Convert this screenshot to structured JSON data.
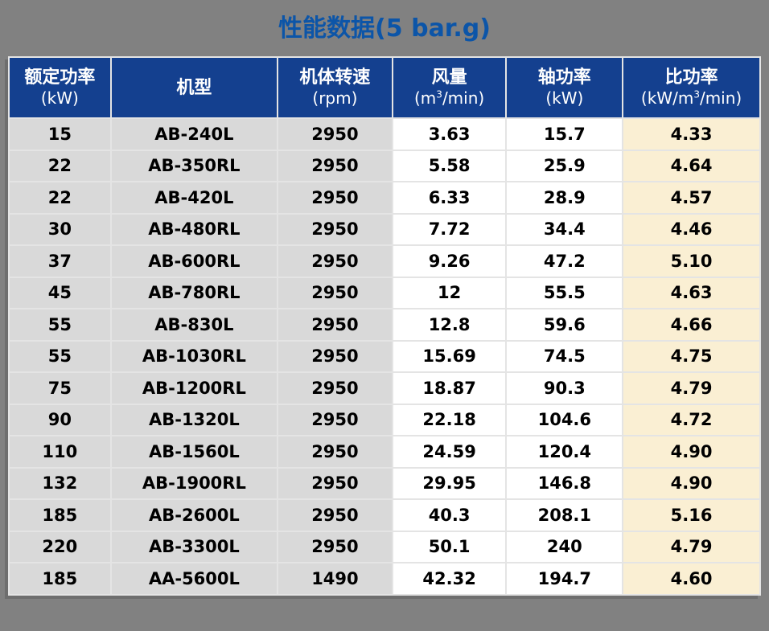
{
  "title": {
    "text": "性能数据(5 bar.g)"
  },
  "colors": {
    "page_bg": "#818181",
    "title": "#0c55a8",
    "header_bg": "#14408f",
    "header_text": "#ffffff",
    "cell_gray": "#d9d9d9",
    "cell_white": "#ffffff",
    "cell_cream": "#faefd3",
    "border": "#e4e4e4"
  },
  "table": {
    "columns": [
      {
        "name": "额定功率",
        "unit_pre": "(kW)",
        "unit_sup": "",
        "unit_post": "",
        "bg": "gray"
      },
      {
        "name": "机型",
        "unit_pre": "",
        "unit_sup": "",
        "unit_post": "",
        "bg": "gray"
      },
      {
        "name": "机体转速",
        "unit_pre": "(rpm)",
        "unit_sup": "",
        "unit_post": "",
        "bg": "gray"
      },
      {
        "name": "风量",
        "unit_pre": "(m",
        "unit_sup": "3",
        "unit_post": "/min)",
        "bg": "white"
      },
      {
        "name": "轴功率",
        "unit_pre": "(kW)",
        "unit_sup": "",
        "unit_post": "",
        "bg": "white"
      },
      {
        "name": "比功率",
        "unit_pre": "(kW/m",
        "unit_sup": "3",
        "unit_post": "/min)",
        "bg": "cream"
      }
    ],
    "rows": [
      [
        "15",
        "AB-240L",
        "2950",
        "3.63",
        "15.7",
        "4.33"
      ],
      [
        "22",
        "AB-350RL",
        "2950",
        "5.58",
        "25.9",
        "4.64"
      ],
      [
        "22",
        "AB-420L",
        "2950",
        "6.33",
        "28.9",
        "4.57"
      ],
      [
        "30",
        "AB-480RL",
        "2950",
        "7.72",
        "34.4",
        "4.46"
      ],
      [
        "37",
        "AB-600RL",
        "2950",
        "9.26",
        "47.2",
        "5.10"
      ],
      [
        "45",
        "AB-780RL",
        "2950",
        "12",
        "55.5",
        "4.63"
      ],
      [
        "55",
        "AB-830L",
        "2950",
        "12.8",
        "59.6",
        "4.66"
      ],
      [
        "55",
        "AB-1030RL",
        "2950",
        "15.69",
        "74.5",
        "4.75"
      ],
      [
        "75",
        "AB-1200RL",
        "2950",
        "18.87",
        "90.3",
        "4.79"
      ],
      [
        "90",
        "AB-1320L",
        "2950",
        "22.18",
        "104.6",
        "4.72"
      ],
      [
        "110",
        "AB-1560L",
        "2950",
        "24.59",
        "120.4",
        "4.90"
      ],
      [
        "132",
        "AB-1900RL",
        "2950",
        "29.95",
        "146.8",
        "4.90"
      ],
      [
        "185",
        "AB-2600L",
        "2950",
        "40.3",
        "208.1",
        "5.16"
      ],
      [
        "220",
        "AB-3300L",
        "2950",
        "50.1",
        "240",
        "4.79"
      ],
      [
        "185",
        "AA-5600L",
        "1490",
        "42.32",
        "194.7",
        "4.60"
      ]
    ]
  }
}
